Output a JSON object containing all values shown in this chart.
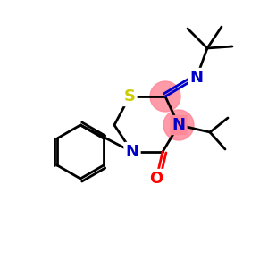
{
  "bg_color": "#ffffff",
  "atom_colors": {
    "C": "#000000",
    "N": "#0000cc",
    "S": "#cccc00",
    "O": "#ff0000",
    "highlight": "#ff6688"
  },
  "ring_highlight_color": "#ff8899",
  "bond_color": "#000000",
  "bond_width": 2.0
}
